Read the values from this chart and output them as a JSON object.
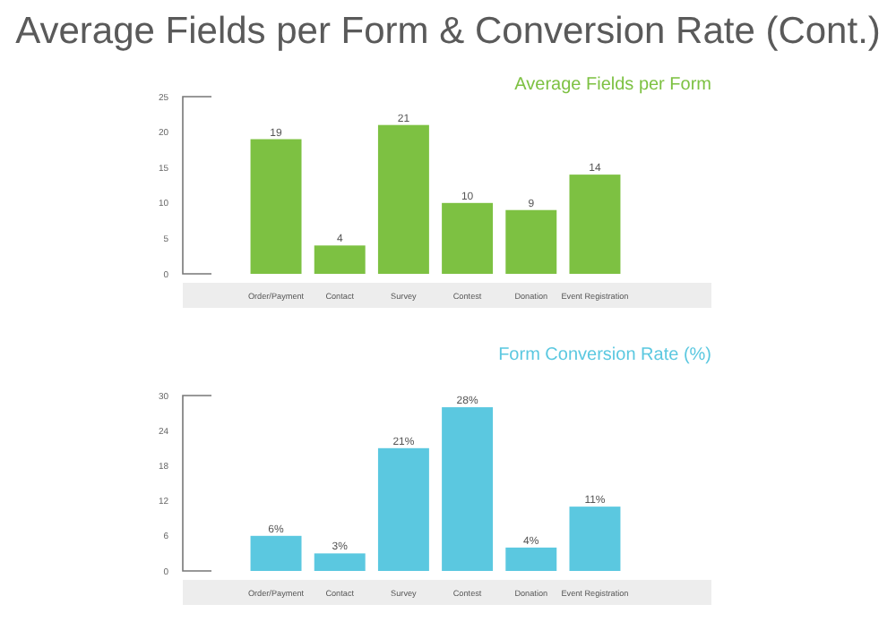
{
  "chart_data": [
    {
      "type": "bar",
      "title": "Average Fields per Form & Conversion Rate (Cont.)",
      "subtitle": "Average Fields per Form",
      "categories": [
        "Order/Payment",
        "Contact",
        "Survey",
        "Contest",
        "Donation",
        "Event Registration"
      ],
      "values": [
        19,
        4,
        21,
        10,
        9,
        14
      ],
      "color": "#7dc142",
      "ylim": [
        0,
        25
      ],
      "yticks": [
        0,
        5,
        10,
        15,
        20,
        25
      ],
      "data_labels": true
    },
    {
      "type": "bar",
      "subtitle": "Form Conversion Rate (%)",
      "categories": [
        "Order/Payment",
        "Contact",
        "Survey",
        "Contest",
        "Donation",
        "Event Registration"
      ],
      "values": [
        6,
        3,
        21,
        28,
        4,
        11
      ],
      "value_labels": [
        "6%",
        "3%",
        "21%",
        "28%",
        "4%",
        "11%"
      ],
      "color": "#5bc8e0",
      "ylim": [
        0,
        30
      ],
      "yticks": [
        0,
        6,
        12,
        18,
        24,
        30
      ]
    }
  ]
}
